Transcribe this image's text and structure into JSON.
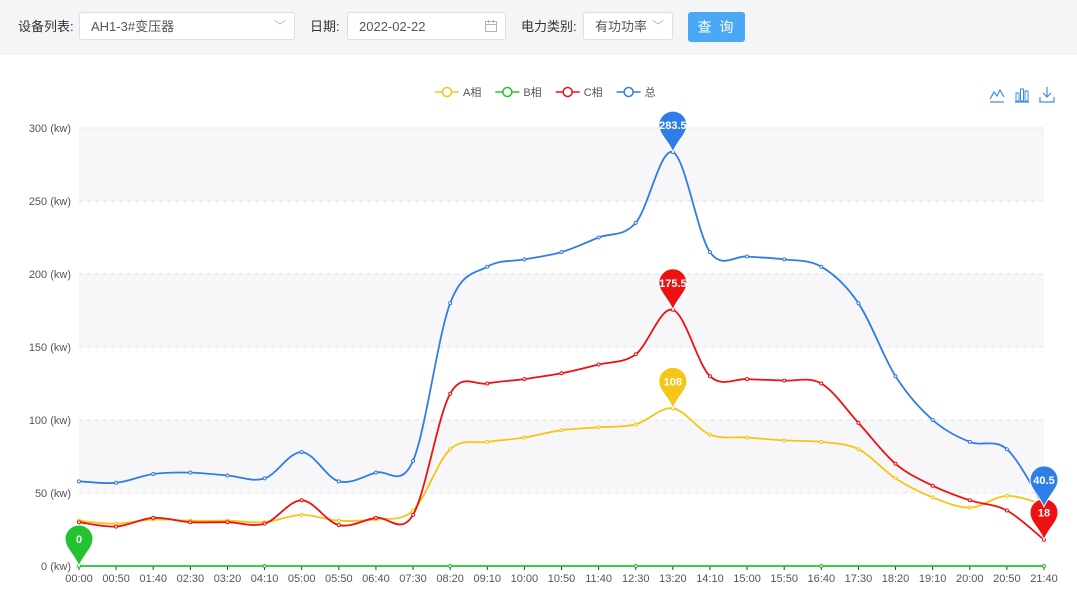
{
  "filters": {
    "device_label": "设备列表:",
    "device_value": "AH1-3#变压器",
    "date_label": "日期:",
    "date_value": "2022-02-22",
    "type_label": "电力类别:",
    "type_value": "有功功率",
    "query_label": "查 询"
  },
  "icons": {
    "dropdown": "chevron-down-icon",
    "calendar": "calendar-icon",
    "line_view": "line-chart-icon",
    "bar_view": "bar-chart-icon",
    "download": "download-icon"
  },
  "chart_data": {
    "type": "line",
    "title": "",
    "xlabel": "",
    "ylabel": "",
    "ylim": [
      0,
      300
    ],
    "ytick_labels": [
      "0 (kw)",
      "50 (kw)",
      "100 (kw)",
      "150 (kw)",
      "200 (kw)",
      "250 (kw)",
      "300 (kw)"
    ],
    "x_tick_labels": [
      "00:00",
      "00:50",
      "01:40",
      "02:30",
      "03:20",
      "04:10",
      "05:00",
      "05:50",
      "06:40",
      "07:30",
      "08:20",
      "09:10",
      "10:00",
      "10:50",
      "11:40",
      "12:30",
      "13:20",
      "14:10",
      "15:00",
      "15:50",
      "16:40",
      "17:30",
      "18:20",
      "19:10",
      "20:00",
      "20:50",
      "21:40"
    ],
    "grid": true,
    "legend": "top-center",
    "series": [
      {
        "name": "A相",
        "color": "#f5c518",
        "points": [
          [
            "00:00",
            31
          ],
          [
            "00:50",
            29
          ],
          [
            "01:40",
            32
          ],
          [
            "02:30",
            31
          ],
          [
            "03:20",
            31
          ],
          [
            "04:10",
            30
          ],
          [
            "05:00",
            35
          ],
          [
            "05:50",
            31
          ],
          [
            "06:40",
            32
          ],
          [
            "07:30",
            38
          ],
          [
            "08:20",
            80
          ],
          [
            "09:10",
            85
          ],
          [
            "10:00",
            88
          ],
          [
            "10:50",
            93
          ],
          [
            "11:40",
            95
          ],
          [
            "12:30",
            97
          ],
          [
            "13:20",
            108
          ],
          [
            "14:10",
            90
          ],
          [
            "15:00",
            88
          ],
          [
            "15:50",
            86
          ],
          [
            "16:40",
            85
          ],
          [
            "17:30",
            80
          ],
          [
            "18:20",
            60
          ],
          [
            "19:10",
            47
          ],
          [
            "20:00",
            40
          ],
          [
            "20:50",
            48
          ],
          [
            "21:40",
            42
          ]
        ],
        "markers": [
          {
            "x": "13:20",
            "value": "108"
          }
        ]
      },
      {
        "name": "B相",
        "color": "#22c32e",
        "points": [
          [
            "00:00",
            0
          ],
          [
            "04:10",
            0
          ],
          [
            "08:20",
            0
          ],
          [
            "12:30",
            0
          ],
          [
            "16:40",
            0
          ],
          [
            "21:40",
            0
          ]
        ],
        "markers": [
          {
            "x": "00:00",
            "value": "0"
          }
        ]
      },
      {
        "name": "C相",
        "color": "#ee1111",
        "points": [
          [
            "00:00",
            30
          ],
          [
            "00:50",
            27
          ],
          [
            "01:40",
            33
          ],
          [
            "02:30",
            30
          ],
          [
            "03:20",
            30
          ],
          [
            "04:10",
            29
          ],
          [
            "05:00",
            45
          ],
          [
            "05:50",
            28
          ],
          [
            "06:40",
            33
          ],
          [
            "07:30",
            35
          ],
          [
            "08:20",
            118
          ],
          [
            "09:10",
            125
          ],
          [
            "10:00",
            128
          ],
          [
            "10:50",
            132
          ],
          [
            "11:40",
            138
          ],
          [
            "12:30",
            145
          ],
          [
            "13:20",
            175.5
          ],
          [
            "14:10",
            130
          ],
          [
            "15:00",
            128
          ],
          [
            "15:50",
            127
          ],
          [
            "16:40",
            125
          ],
          [
            "17:30",
            98
          ],
          [
            "18:20",
            70
          ],
          [
            "19:10",
            55
          ],
          [
            "20:00",
            45
          ],
          [
            "20:50",
            38
          ],
          [
            "21:40",
            18
          ]
        ],
        "markers": [
          {
            "x": "21:40",
            "value": "18"
          },
          {
            "x": "13:20",
            "value": "175.5"
          }
        ]
      },
      {
        "name": "总",
        "color": "#2f7ee8",
        "points": [
          [
            "00:00",
            58
          ],
          [
            "00:50",
            57
          ],
          [
            "01:40",
            63
          ],
          [
            "02:30",
            64
          ],
          [
            "03:20",
            62
          ],
          [
            "04:10",
            60
          ],
          [
            "05:00",
            78
          ],
          [
            "05:50",
            58
          ],
          [
            "06:40",
            64
          ],
          [
            "07:30",
            72
          ],
          [
            "08:20",
            180
          ],
          [
            "09:10",
            205
          ],
          [
            "10:00",
            210
          ],
          [
            "10:50",
            215
          ],
          [
            "11:40",
            225
          ],
          [
            "12:30",
            235
          ],
          [
            "13:20",
            283.5
          ],
          [
            "14:10",
            215
          ],
          [
            "15:00",
            212
          ],
          [
            "15:50",
            210
          ],
          [
            "16:40",
            205
          ],
          [
            "17:30",
            180
          ],
          [
            "18:20",
            130
          ],
          [
            "19:10",
            100
          ],
          [
            "20:00",
            85
          ],
          [
            "20:50",
            80
          ],
          [
            "21:40",
            40.5
          ]
        ],
        "markers": [
          {
            "x": "13:20",
            "value": "283.5"
          },
          {
            "x": "21:40",
            "value": "40.5"
          }
        ]
      }
    ]
  }
}
